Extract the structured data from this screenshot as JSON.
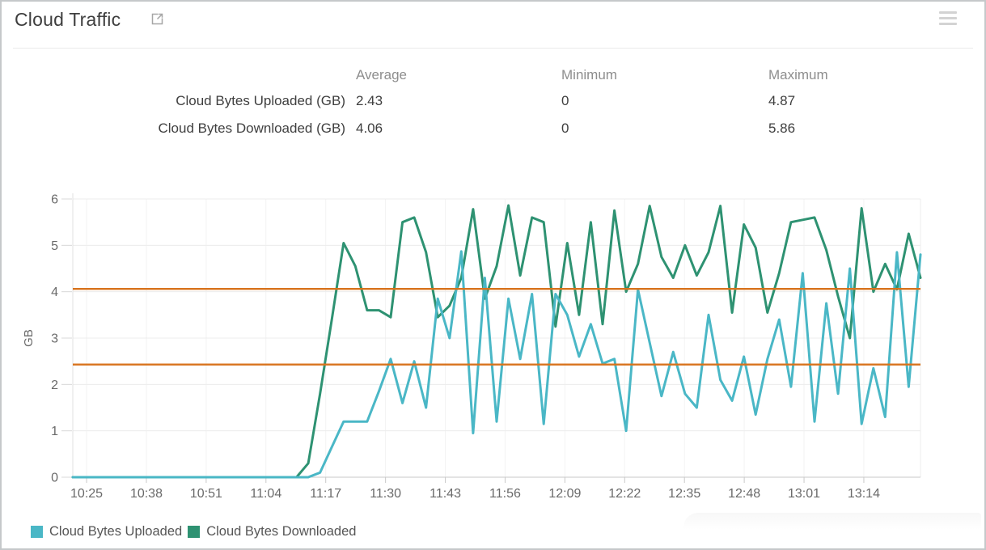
{
  "panel": {
    "title": "Cloud Traffic",
    "external_link_icon": "open-in-new-window",
    "menu_icon": "hamburger-menu"
  },
  "stats_table": {
    "columns": [
      "Average",
      "Minimum",
      "Maximum"
    ],
    "rows": [
      {
        "label": "Cloud Bytes Uploaded (GB)",
        "average": "2.43",
        "minimum": "0",
        "maximum": "4.87"
      },
      {
        "label": "Cloud Bytes Downloaded (GB)",
        "average": "4.06",
        "minimum": "0",
        "maximum": "5.86"
      }
    ]
  },
  "chart_data": {
    "type": "line",
    "title": "Cloud Traffic",
    "xlabel": "",
    "ylabel": "GB",
    "ylim": [
      0,
      6
    ],
    "y_ticks": [
      0,
      1,
      2,
      3,
      4,
      5,
      6
    ],
    "grid": true,
    "legend_position": "bottom-left",
    "x_tick_labels": [
      "10:25",
      "10:38",
      "10:51",
      "11:04",
      "11:17",
      "11:30",
      "11:43",
      "11:56",
      "12:09",
      "12:22",
      "12:35",
      "12:48",
      "13:01",
      "13:14"
    ],
    "x_tick_minutes": [
      0,
      13,
      26,
      39,
      52,
      65,
      78,
      91,
      104,
      117,
      130,
      143,
      156,
      169
    ],
    "t_start_min": -3,
    "t_step_min": 2.56,
    "x_domain_minutes": [
      -3,
      181.32
    ],
    "series": [
      {
        "name": "Cloud Bytes Uploaded",
        "color": "#4ab7c6",
        "values": [
          0,
          0,
          0,
          0,
          0,
          0,
          0,
          0,
          0,
          0,
          0,
          0,
          0,
          0,
          0,
          0,
          0,
          0,
          0,
          0,
          0,
          0.1,
          0.65,
          1.2,
          1.2,
          1.2,
          1.85,
          2.55,
          1.6,
          2.5,
          1.5,
          3.85,
          3.0,
          4.87,
          0.95,
          4.3,
          1.2,
          3.85,
          2.55,
          3.95,
          1.15,
          3.95,
          3.5,
          2.6,
          3.3,
          2.45,
          2.55,
          1.0,
          4.05,
          2.9,
          1.75,
          2.7,
          1.8,
          1.5,
          3.5,
          2.1,
          1.65,
          2.6,
          1.35,
          2.55,
          3.4,
          1.95,
          4.4,
          1.2,
          3.75,
          1.8,
          4.5,
          1.15,
          2.35,
          1.3,
          4.85,
          1.95,
          4.8
        ]
      },
      {
        "name": "Cloud Bytes Downloaded",
        "color": "#2e9272",
        "values": [
          0,
          0,
          0,
          0,
          0,
          0,
          0,
          0,
          0,
          0,
          0,
          0,
          0,
          0,
          0,
          0,
          0,
          0,
          0,
          0,
          0.3,
          1.8,
          3.4,
          5.05,
          4.55,
          3.6,
          3.6,
          3.45,
          5.5,
          5.6,
          4.85,
          3.45,
          3.7,
          4.3,
          5.78,
          3.85,
          4.55,
          5.86,
          4.35,
          5.6,
          5.5,
          3.25,
          5.05,
          3.5,
          5.5,
          3.3,
          5.75,
          4.0,
          4.6,
          5.85,
          4.75,
          4.3,
          5.0,
          4.35,
          4.85,
          5.85,
          3.55,
          5.45,
          4.95,
          3.55,
          4.4,
          5.5,
          5.55,
          5.6,
          4.9,
          3.9,
          3.0,
          5.8,
          4.0,
          4.6,
          4.05,
          5.25,
          4.3
        ]
      }
    ],
    "reference_lines": [
      {
        "value": 4.06,
        "color": "#d8731d",
        "label": "downloaded-average"
      },
      {
        "value": 2.43,
        "color": "#d8731d",
        "label": "uploaded-average"
      }
    ],
    "legend": [
      {
        "label": "Cloud Bytes Uploaded",
        "color": "#4ab7c6"
      },
      {
        "label": "Cloud Bytes Downloaded",
        "color": "#2e9272"
      }
    ]
  }
}
